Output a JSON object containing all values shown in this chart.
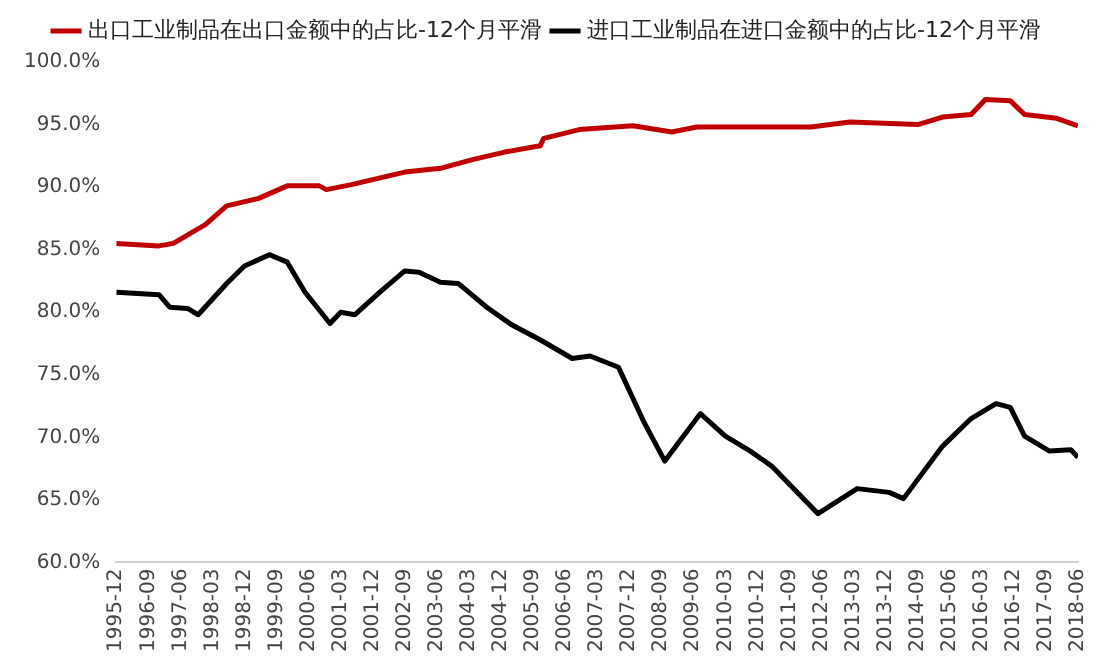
{
  "chart_data": {
    "type": "line",
    "legend": "top",
    "grid": false,
    "marker": "none",
    "line_style": "solid",
    "xlim": [
      "1995-12",
      "2018-06"
    ],
    "xticks": [
      "1995-12",
      "1996-09",
      "1997-06",
      "1998-03",
      "1998-12",
      "1999-09",
      "2000-06",
      "2001-03",
      "2001-12",
      "2002-09",
      "2003-06",
      "2004-03",
      "2004-12",
      "2005-09",
      "2006-06",
      "2007-03",
      "2007-12",
      "2008-09",
      "2009-06",
      "2010-03",
      "2010-12",
      "2011-09",
      "2012-06",
      "2013-03",
      "2013-12",
      "2014-09",
      "2015-06",
      "2016-03",
      "2016-12",
      "2017-09",
      "2018-06"
    ],
    "ylim": [
      60,
      100
    ],
    "yticks": [
      {
        "value": 60,
        "label": "60.0%"
      },
      {
        "value": 65,
        "label": "65.0%"
      },
      {
        "value": 70,
        "label": "70.0%"
      },
      {
        "value": 75,
        "label": "75.0%"
      },
      {
        "value": 80,
        "label": "80.0%"
      },
      {
        "value": 85,
        "label": "85.0%"
      },
      {
        "value": 90,
        "label": "90.0%"
      },
      {
        "value": 95,
        "label": "95.0%"
      },
      {
        "value": 100,
        "label": "100.0%"
      }
    ],
    "series": [
      {
        "name": "出口工业制品在出口金额中的占比-12个月平滑",
        "color": "#c00000",
        "x": [
          "1995-12",
          "1996-12",
          "1997-04",
          "1998-01",
          "1998-07",
          "1999-04",
          "1999-12",
          "2000-09",
          "2000-11",
          "2001-06",
          "2002-09",
          "2003-07",
          "2004-04",
          "2005-01",
          "2005-11",
          "2005-12",
          "2006-10",
          "2008-01",
          "2008-12",
          "2009-07",
          "2012-03",
          "2013-02",
          "2014-09",
          "2015-04",
          "2015-12",
          "2016-04",
          "2016-11",
          "2017-03",
          "2017-12",
          "2018-06"
        ],
        "values": [
          85.5,
          85.3,
          85.5,
          87.0,
          88.5,
          89.1,
          90.1,
          90.1,
          89.8,
          90.2,
          91.2,
          91.5,
          92.2,
          92.8,
          93.3,
          93.9,
          94.6,
          94.9,
          94.4,
          94.8,
          94.8,
          95.2,
          95.0,
          95.6,
          95.8,
          97.0,
          96.9,
          95.8,
          95.5,
          94.9
        ]
      },
      {
        "name": "进口工业制品在进口金额中的占比-12个月平滑",
        "color": "#000000",
        "x": [
          "1995-12",
          "1996-12",
          "1997-03",
          "1997-08",
          "1997-11",
          "1998-07",
          "1998-12",
          "1999-07",
          "1999-12",
          "2000-05",
          "2000-12",
          "2001-03",
          "2001-07",
          "2002-02",
          "2002-09",
          "2003-01",
          "2003-07",
          "2003-12",
          "2004-08",
          "2005-03",
          "2005-11",
          "2006-08",
          "2007-01",
          "2007-09",
          "2008-04",
          "2008-10",
          "2009-08",
          "2010-03",
          "2010-10",
          "2011-04",
          "2012-05",
          "2013-04",
          "2014-01",
          "2014-05",
          "2015-04",
          "2015-12",
          "2016-07",
          "2016-11",
          "2017-03",
          "2017-10",
          "2018-04",
          "2018-06"
        ],
        "values": [
          81.6,
          81.4,
          80.4,
          80.3,
          79.8,
          82.3,
          83.7,
          84.6,
          84.0,
          81.6,
          79.1,
          80.0,
          79.8,
          81.6,
          83.3,
          83.2,
          82.4,
          82.3,
          80.4,
          79.0,
          77.8,
          76.3,
          76.5,
          75.6,
          71.3,
          68.1,
          71.9,
          70.1,
          68.9,
          67.7,
          63.9,
          65.9,
          65.6,
          65.1,
          69.3,
          71.5,
          72.7,
          72.4,
          70.1,
          68.9,
          69.0,
          68.4
        ]
      }
    ]
  }
}
